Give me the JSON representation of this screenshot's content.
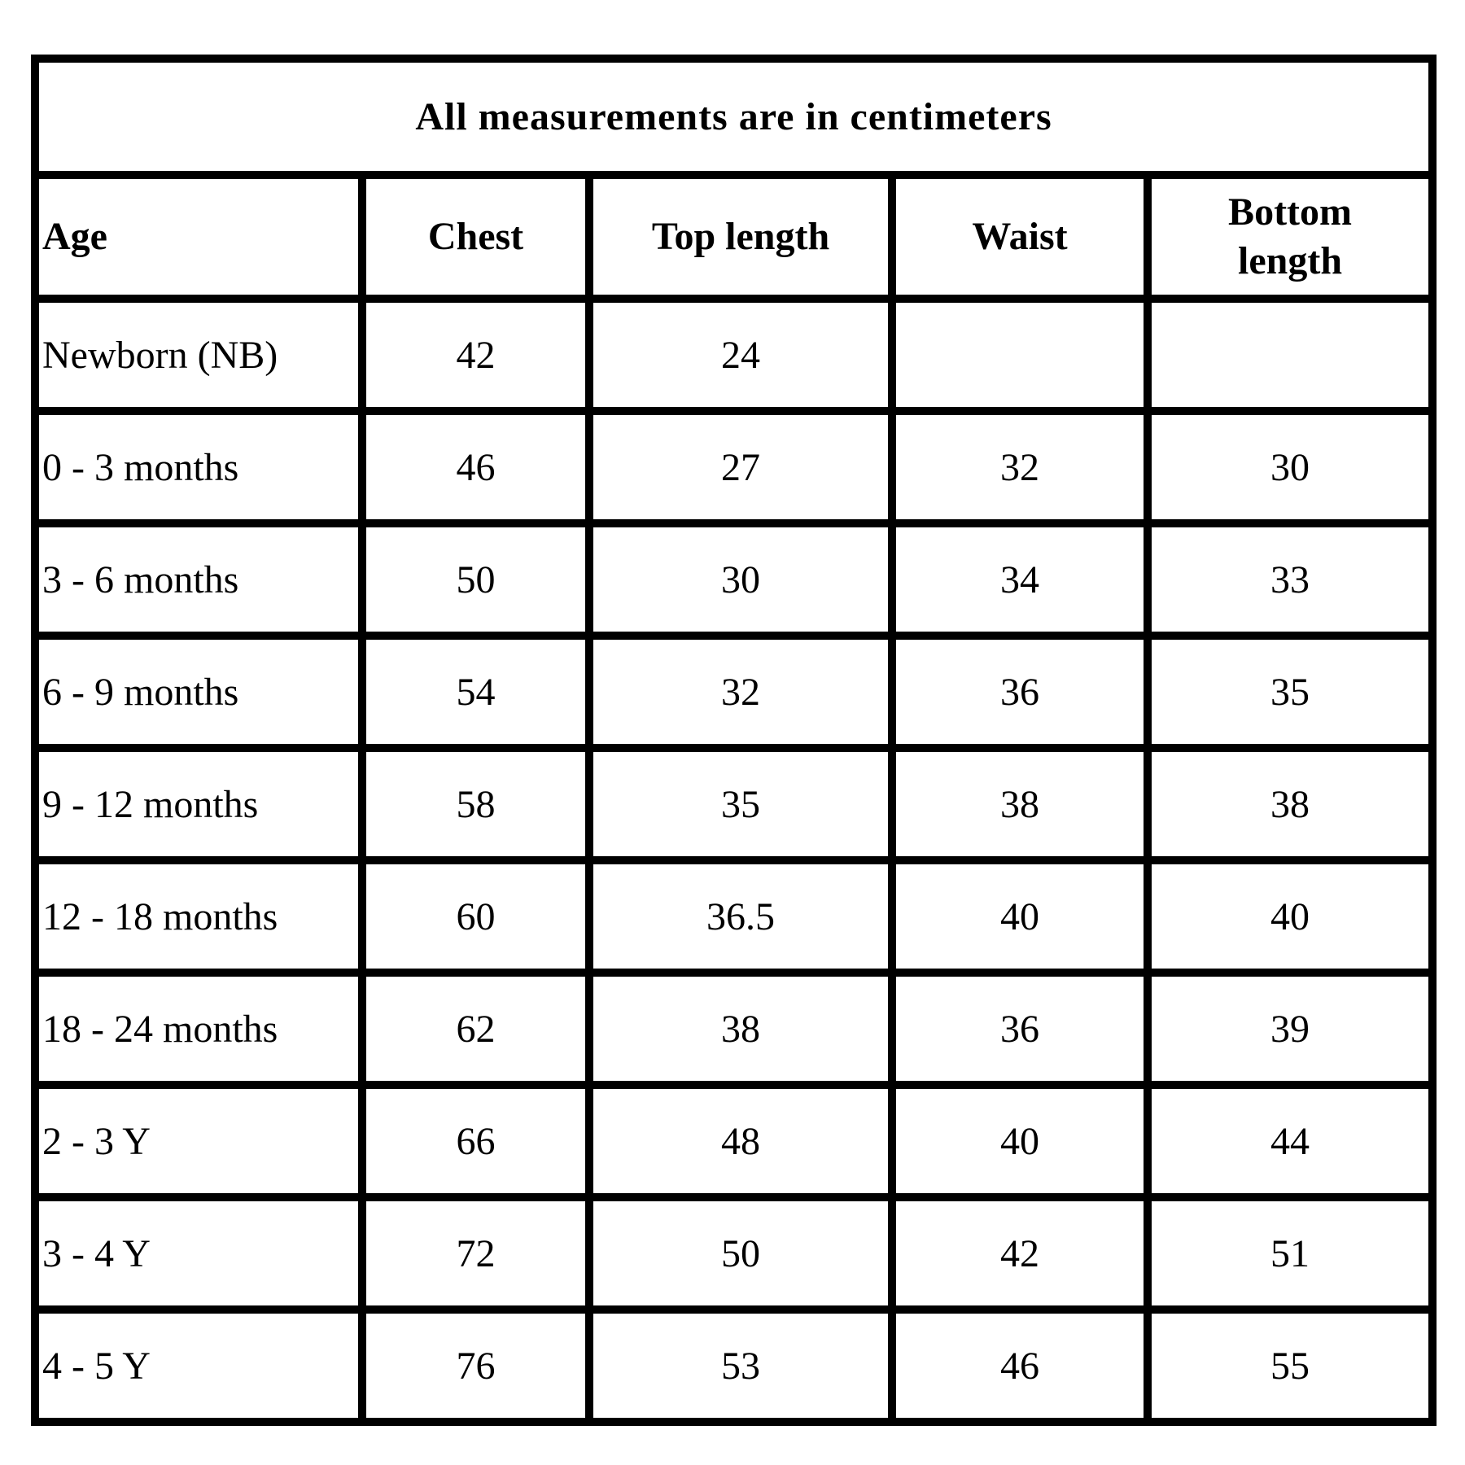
{
  "colors": {
    "background": "#ffffff",
    "border": "#000000",
    "text": "#000000"
  },
  "table": {
    "caption": "All measurements are in centimeters",
    "columns": [
      "Age",
      "Chest",
      "Top length",
      "Waist",
      "Bottom length"
    ],
    "rows": [
      [
        "Newborn (NB)",
        "42",
        "24",
        "",
        ""
      ],
      [
        "0 - 3 months",
        "46",
        "27",
        "32",
        "30"
      ],
      [
        "3 - 6 months",
        "50",
        "30",
        "34",
        "33"
      ],
      [
        "6 - 9 months",
        "54",
        "32",
        "36",
        "35"
      ],
      [
        "9 - 12 months",
        "58",
        "35",
        "38",
        "38"
      ],
      [
        "12 - 18 months",
        "60",
        "36.5",
        "40",
        "40"
      ],
      [
        "18 - 24 months",
        "62",
        "38",
        "36",
        "39"
      ],
      [
        "2 - 3 Y",
        "66",
        "48",
        "40",
        "44"
      ],
      [
        "3 - 4 Y",
        "72",
        "50",
        "42",
        "51"
      ],
      [
        "4 - 5 Y",
        "76",
        "53",
        "46",
        "55"
      ]
    ]
  }
}
